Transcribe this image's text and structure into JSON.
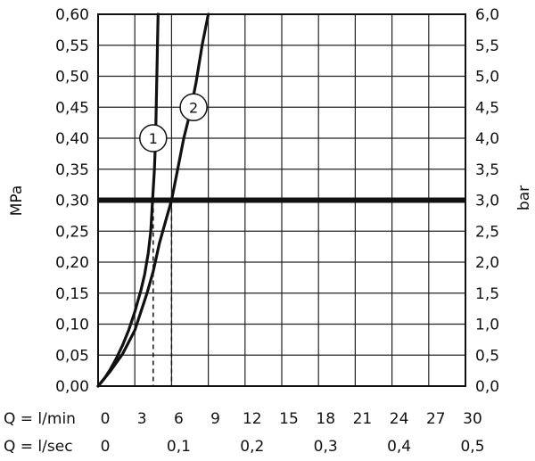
{
  "chart_data": {
    "type": "line",
    "grid": true,
    "xaxis": {
      "label": "Q = l/min",
      "range": [
        0,
        30
      ],
      "ticks": [
        0,
        3,
        6,
        9,
        12,
        15,
        18,
        21,
        24,
        27,
        30
      ],
      "tick_labels": [
        "0",
        "3",
        "6",
        "9",
        "12",
        "15",
        "18",
        "21",
        "24",
        "27",
        "30"
      ]
    },
    "xaxis_secondary": {
      "label": "Q = l/sec",
      "ticks": [
        0,
        0.1,
        0.2,
        0.3,
        0.4,
        0.5
      ],
      "tick_labels": [
        "0",
        "0,1",
        "0,2",
        "0,3",
        "0,4",
        "0,5"
      ]
    },
    "yaxis_left": {
      "label": "MPa",
      "range": [
        0,
        0.6
      ],
      "ticks": [
        0,
        0.05,
        0.1,
        0.15,
        0.2,
        0.25,
        0.3,
        0.35,
        0.4,
        0.45,
        0.5,
        0.55,
        0.6
      ],
      "tick_labels": [
        "0,00",
        "0,05",
        "0,10",
        "0,15",
        "0,20",
        "0,25",
        "0,30",
        "0,35",
        "0,40",
        "0,45",
        "0,50",
        "0,55",
        "0,60"
      ]
    },
    "yaxis_right": {
      "label": "bar",
      "range": [
        0,
        6
      ],
      "tick_labels": [
        "0,0",
        "0,5",
        "1,0",
        "1,5",
        "2,0",
        "2,5",
        "3,0",
        "3,5",
        "4,0",
        "4,5",
        "5,0",
        "5,5",
        "6,0"
      ]
    },
    "series": [
      {
        "marker": "1",
        "marker_at": [
          4.5,
          0.4
        ],
        "x": [
          0,
          0.5,
          1,
          1.5,
          2,
          2.5,
          3,
          3.5,
          3.8,
          4.1,
          4.3,
          4.45,
          4.6,
          4.7,
          4.75,
          4.8,
          4.85,
          4.9
        ],
        "y": [
          0,
          0.012,
          0.027,
          0.045,
          0.066,
          0.09,
          0.12,
          0.155,
          0.18,
          0.215,
          0.25,
          0.3,
          0.35,
          0.4,
          0.45,
          0.5,
          0.55,
          0.6
        ]
      },
      {
        "marker": "2",
        "marker_at": [
          7.8,
          0.45
        ],
        "x": [
          0,
          1,
          2,
          3,
          4,
          4.5,
          5,
          5.5,
          6,
          6.5,
          7,
          7.5,
          8,
          8.5,
          9
        ],
        "y": [
          0,
          0.024,
          0.052,
          0.09,
          0.15,
          0.185,
          0.23,
          0.265,
          0.3,
          0.35,
          0.4,
          0.44,
          0.49,
          0.55,
          0.6
        ]
      }
    ],
    "reference_line": {
      "y": 0.3
    },
    "drop_lines": [
      {
        "x": 4.5,
        "y": 0.3
      },
      {
        "x": 6,
        "y": 0.3
      }
    ]
  }
}
